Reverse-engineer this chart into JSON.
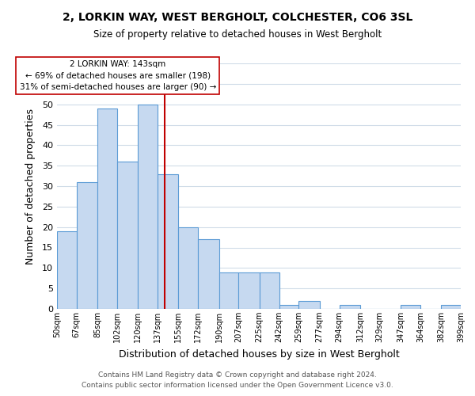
{
  "title": "2, LORKIN WAY, WEST BERGHOLT, COLCHESTER, CO6 3SL",
  "subtitle": "Size of property relative to detached houses in West Bergholt",
  "xlabel": "Distribution of detached houses by size in West Bergholt",
  "ylabel": "Number of detached properties",
  "bar_edges": [
    50,
    67,
    85,
    102,
    120,
    137,
    155,
    172,
    190,
    207,
    225,
    242,
    259,
    277,
    294,
    312,
    329,
    347,
    364,
    382,
    399
  ],
  "bar_heights": [
    19,
    31,
    49,
    36,
    50,
    33,
    20,
    17,
    9,
    9,
    9,
    1,
    2,
    0,
    1,
    0,
    0,
    1,
    0,
    1
  ],
  "bar_color": "#c6d9f0",
  "bar_edgecolor": "#5b9bd5",
  "vline_x": 143,
  "vline_color": "#c00000",
  "ylim": [
    0,
    60
  ],
  "annotation_line1": "2 LORKIN WAY: 143sqm",
  "annotation_line2": "← 69% of detached houses are smaller (198)",
  "annotation_line3": "31% of semi-detached houses are larger (90) →",
  "footer1": "Contains HM Land Registry data © Crown copyright and database right 2024.",
  "footer2": "Contains public sector information licensed under the Open Government Licence v3.0.",
  "tick_labels": [
    "50sqm",
    "67sqm",
    "85sqm",
    "102sqm",
    "120sqm",
    "137sqm",
    "155sqm",
    "172sqm",
    "190sqm",
    "207sqm",
    "225sqm",
    "242sqm",
    "259sqm",
    "277sqm",
    "294sqm",
    "312sqm",
    "329sqm",
    "347sqm",
    "364sqm",
    "382sqm",
    "399sqm"
  ],
  "background_color": "#ffffff",
  "grid_color": "#d0dce8"
}
